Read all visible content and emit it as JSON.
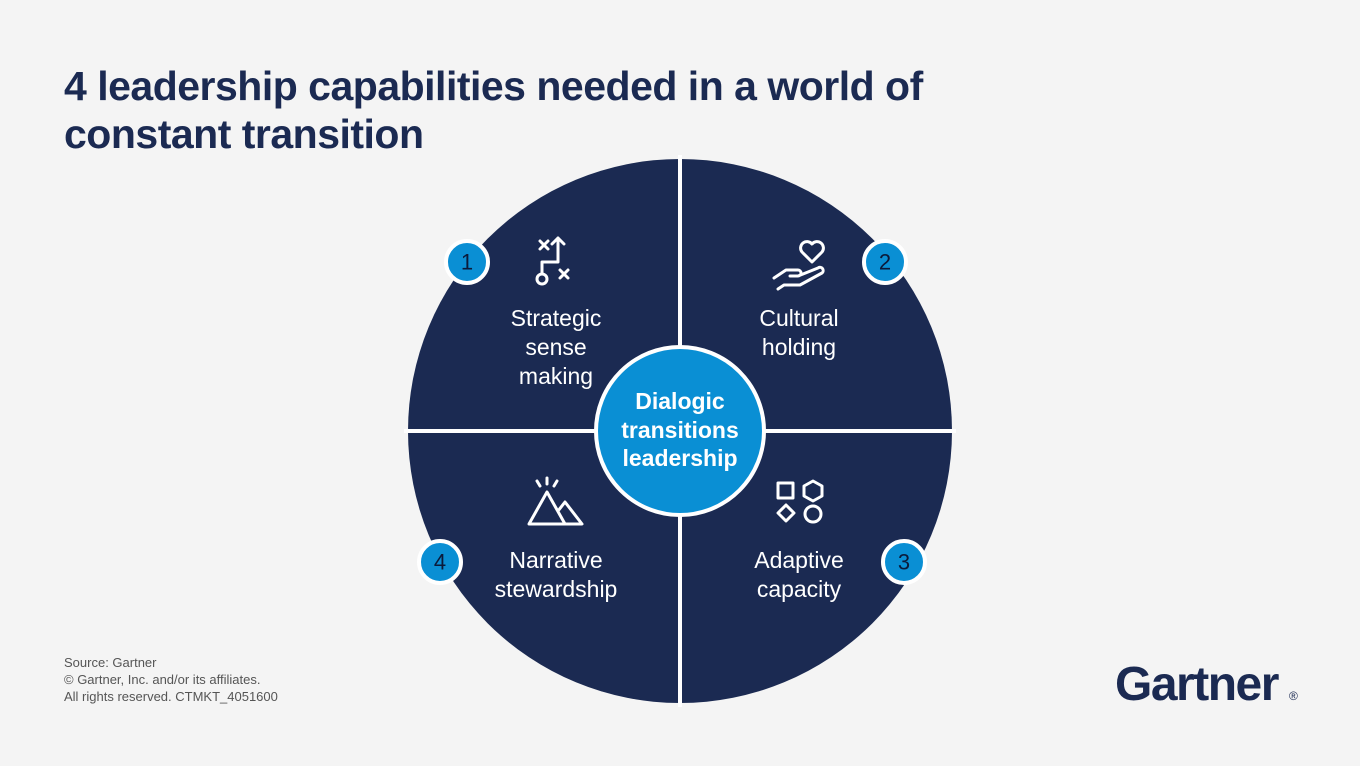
{
  "title_lines": [
    "4 leadership capabilities needed in a world of",
    "constant transition"
  ],
  "center": {
    "lines": [
      "Dialogic",
      "transitions",
      "leadership"
    ]
  },
  "quadrants": [
    {
      "number": "1",
      "label": [
        "Strategic",
        "sense",
        "making"
      ]
    },
    {
      "number": "2",
      "label": [
        "Cultural",
        "holding"
      ]
    },
    {
      "number": "3",
      "label": [
        "Adaptive",
        "capacity"
      ]
    },
    {
      "number": "4",
      "label": [
        "Narrative",
        "stewardship"
      ]
    }
  ],
  "footer": [
    "Source: Gartner",
    "© Gartner, Inc. and/or its affiliates.",
    "All rights reserved. CTMKT_4051600"
  ],
  "logo": {
    "text": "Gartner",
    "mark": "®"
  }
}
